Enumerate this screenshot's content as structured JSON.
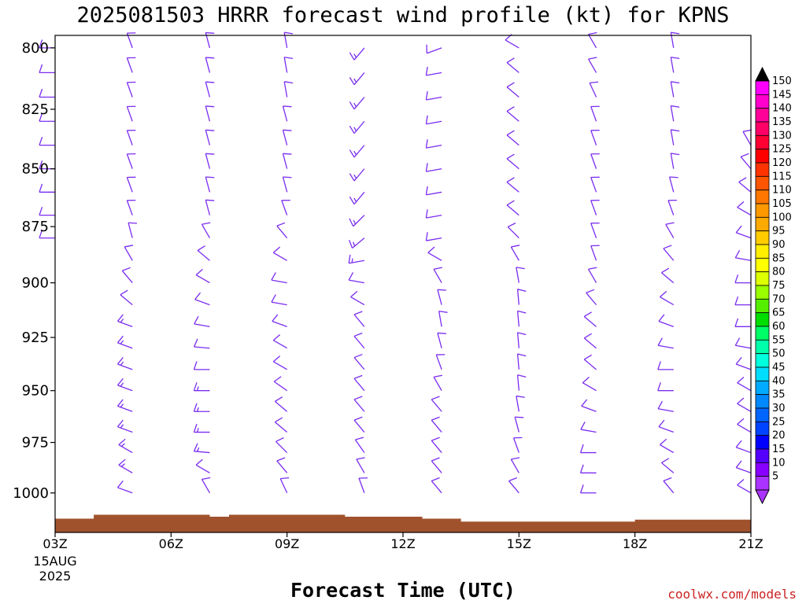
{
  "chart_data": {
    "type": "wind-barb-time-height",
    "title": "2025081503 HRRR forecast wind profile (kt) for KPNS",
    "xlabel": "Forecast Time (UTC)",
    "ylabel": "",
    "x_ticks": [
      "03Z",
      "06Z",
      "09Z",
      "12Z",
      "15Z",
      "18Z",
      "21Z"
    ],
    "x_tick_hours": [
      3,
      6,
      9,
      12,
      15,
      18,
      21
    ],
    "x_start_date_line1": "15AUG",
    "x_start_date_line2": "2025",
    "xlim": [
      3,
      21
    ],
    "y_ticks": [
      800,
      825,
      850,
      875,
      900,
      925,
      950,
      975,
      1000
    ],
    "ylim": [
      1020,
      795
    ],
    "barb_pressure_levels": [
      800,
      810,
      820,
      830,
      840,
      850,
      860,
      870,
      880,
      890,
      900,
      910,
      920,
      930,
      940,
      950,
      960,
      970,
      980,
      990,
      1000
    ],
    "barb_color": "#7a2cf0",
    "series": [
      {
        "hour": 3,
        "surface_hpa": 1013,
        "levels": [
          800,
          810,
          820,
          830,
          840,
          850,
          860,
          870,
          880
        ],
        "dir": [
          270,
          270,
          270,
          270,
          270,
          270,
          270,
          270,
          270
        ],
        "spd": [
          10,
          10,
          10,
          10,
          10,
          10,
          10,
          10,
          10
        ]
      },
      {
        "hour": 5,
        "surface_hpa": 1015,
        "levels": [
          800,
          810,
          820,
          830,
          840,
          850,
          860,
          870,
          880,
          890,
          900,
          910,
          920,
          930,
          940,
          950,
          960,
          970,
          980,
          990,
          1000
        ],
        "dir": [
          340,
          340,
          340,
          340,
          340,
          340,
          340,
          340,
          345,
          330,
          320,
          310,
          290,
          290,
          290,
          290,
          290,
          290,
          300,
          300,
          290
        ],
        "spd": [
          10,
          10,
          10,
          10,
          10,
          10,
          10,
          10,
          10,
          10,
          10,
          10,
          15,
          15,
          15,
          15,
          15,
          15,
          15,
          15,
          10
        ]
      },
      {
        "hour": 7,
        "surface_hpa": 1015,
        "levels": [
          800,
          810,
          820,
          830,
          840,
          850,
          860,
          870,
          880,
          890,
          900,
          910,
          920,
          930,
          940,
          950,
          960,
          970,
          980,
          990,
          1000
        ],
        "dir": [
          345,
          345,
          345,
          345,
          345,
          345,
          345,
          345,
          330,
          310,
          300,
          290,
          280,
          275,
          270,
          270,
          270,
          270,
          275,
          300,
          330
        ],
        "spd": [
          10,
          10,
          10,
          10,
          10,
          10,
          10,
          10,
          10,
          10,
          10,
          10,
          10,
          10,
          10,
          15,
          15,
          15,
          15,
          10,
          10
        ]
      },
      {
        "hour": 9,
        "surface_hpa": 1015,
        "levels": [
          800,
          810,
          820,
          830,
          840,
          850,
          860,
          870,
          880,
          890,
          900,
          910,
          920,
          930,
          940,
          950,
          960,
          970,
          980,
          990,
          1000
        ],
        "dir": [
          350,
          350,
          350,
          345,
          345,
          345,
          345,
          340,
          320,
          300,
          280,
          280,
          290,
          300,
          300,
          305,
          310,
          310,
          315,
          320,
          335
        ],
        "spd": [
          10,
          10,
          10,
          10,
          10,
          10,
          10,
          10,
          10,
          10,
          10,
          10,
          10,
          10,
          10,
          10,
          10,
          10,
          10,
          10,
          10
        ]
      },
      {
        "hour": 11,
        "surface_hpa": 1015,
        "levels": [
          800,
          810,
          820,
          830,
          840,
          850,
          860,
          870,
          880,
          890,
          900,
          910,
          920,
          930,
          940,
          950,
          960,
          970,
          980,
          990,
          1000
        ],
        "dir": [
          220,
          220,
          220,
          220,
          220,
          220,
          220,
          225,
          230,
          260,
          280,
          300,
          320,
          320,
          320,
          320,
          320,
          320,
          325,
          330,
          340
        ],
        "spd": [
          15,
          15,
          15,
          15,
          15,
          15,
          15,
          15,
          15,
          15,
          10,
          10,
          10,
          10,
          10,
          10,
          10,
          10,
          10,
          10,
          10
        ]
      },
      {
        "hour": 13,
        "surface_hpa": 1016,
        "levels": [
          800,
          810,
          820,
          830,
          840,
          850,
          860,
          870,
          880,
          890,
          900,
          910,
          920,
          930,
          940,
          950,
          960,
          970,
          980,
          990,
          1000
        ],
        "dir": [
          250,
          260,
          260,
          260,
          260,
          260,
          260,
          260,
          260,
          300,
          330,
          345,
          350,
          345,
          340,
          330,
          320,
          320,
          320,
          320,
          320
        ],
        "spd": [
          10,
          10,
          10,
          10,
          10,
          10,
          10,
          10,
          10,
          10,
          10,
          10,
          10,
          10,
          10,
          10,
          10,
          10,
          10,
          10,
          10
        ]
      },
      {
        "hour": 15,
        "surface_hpa": 1017,
        "levels": [
          800,
          810,
          820,
          830,
          840,
          850,
          860,
          870,
          880,
          890,
          900,
          910,
          920,
          930,
          940,
          950,
          960,
          970,
          980,
          990,
          1000
        ],
        "dir": [
          300,
          310,
          310,
          310,
          310,
          310,
          310,
          310,
          315,
          330,
          350,
          355,
          355,
          355,
          355,
          355,
          350,
          345,
          340,
          330,
          320
        ],
        "spd": [
          10,
          10,
          10,
          10,
          10,
          10,
          10,
          10,
          10,
          10,
          10,
          10,
          10,
          10,
          10,
          10,
          10,
          10,
          10,
          10,
          10
        ]
      },
      {
        "hour": 17,
        "surface_hpa": 1017,
        "levels": [
          800,
          810,
          820,
          830,
          840,
          850,
          860,
          870,
          880,
          890,
          900,
          910,
          920,
          930,
          940,
          950,
          960,
          970,
          980,
          990,
          1000
        ],
        "dir": [
          330,
          330,
          335,
          340,
          340,
          340,
          340,
          340,
          340,
          340,
          330,
          320,
          310,
          310,
          310,
          300,
          290,
          280,
          270,
          270,
          270
        ],
        "spd": [
          10,
          10,
          10,
          10,
          10,
          10,
          10,
          10,
          10,
          10,
          10,
          10,
          10,
          10,
          10,
          10,
          10,
          10,
          10,
          10,
          10
        ]
      },
      {
        "hour": 19,
        "surface_hpa": 1016,
        "levels": [
          800,
          810,
          820,
          830,
          840,
          850,
          860,
          870,
          880,
          890,
          900,
          910,
          920,
          930,
          940,
          950,
          960,
          970,
          980,
          990,
          1000
        ],
        "dir": [
          350,
          350,
          350,
          350,
          350,
          350,
          345,
          340,
          330,
          320,
          310,
          300,
          290,
          280,
          270,
          270,
          280,
          290,
          300,
          310,
          320
        ],
        "spd": [
          10,
          10,
          10,
          10,
          10,
          10,
          10,
          10,
          10,
          10,
          10,
          10,
          10,
          10,
          10,
          10,
          10,
          10,
          10,
          10,
          10
        ]
      },
      {
        "hour": 21,
        "surface_hpa": 1016,
        "levels": [
          840,
          850,
          860,
          870,
          880,
          890,
          900,
          910,
          920,
          930,
          940,
          950,
          960,
          970,
          980,
          990,
          1000
        ],
        "dir": [
          330,
          320,
          310,
          300,
          290,
          280,
          270,
          270,
          270,
          280,
          290,
          300,
          300,
          300,
          290,
          290,
          300
        ],
        "spd": [
          10,
          10,
          10,
          10,
          10,
          10,
          10,
          10,
          10,
          10,
          10,
          10,
          10,
          10,
          10,
          10,
          10
        ]
      }
    ],
    "colorbar": {
      "labels": [
        "150",
        "145",
        "140",
        "135",
        "130",
        "125",
        "120",
        "115",
        "110",
        "105",
        "100",
        "95",
        "90",
        "85",
        "80",
        "75",
        "70",
        "65",
        "60",
        "55",
        "50",
        "45",
        "40",
        "35",
        "30",
        "25",
        "20",
        "15",
        "10",
        "5"
      ],
      "colors": [
        "#ff00ff",
        "#ff00cc",
        "#ff0099",
        "#ff0066",
        "#ff0033",
        "#ff0000",
        "#ff3300",
        "#ff5500",
        "#ff7700",
        "#ff9900",
        "#ffaa00",
        "#ffcc00",
        "#ffee00",
        "#ffff00",
        "#ddff00",
        "#99ff00",
        "#55ee00",
        "#00dd00",
        "#00ff66",
        "#00ffaa",
        "#00ffdd",
        "#00ddff",
        "#00aaff",
        "#0088ff",
        "#0066ff",
        "#0044ff",
        "#0000ff",
        "#5500ff",
        "#8800ff",
        "#aa33ff"
      ],
      "top_arrow_color": "#000000",
      "bottom_arrow_color": "#aa33ff"
    },
    "ground_color": "#a0522d"
  },
  "credit": "coolwx.com/models"
}
